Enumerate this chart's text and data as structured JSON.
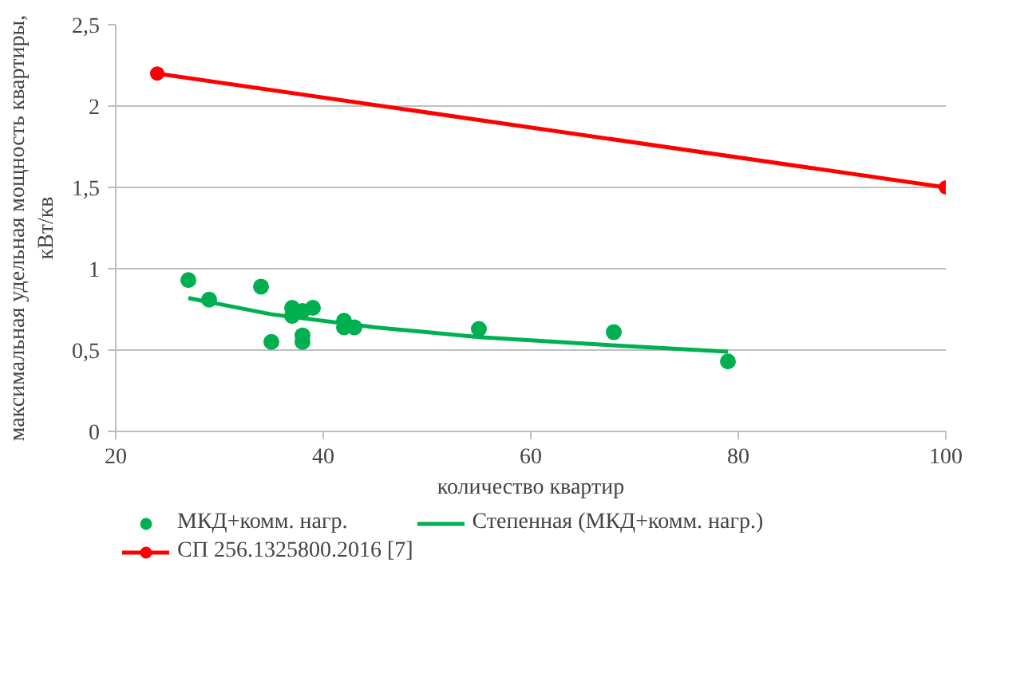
{
  "chart_data": {
    "type": "scatter",
    "xlabel": "количество квартир",
    "ylabel": "максимальная удельная мощность квартиры,\nкВт/кв",
    "xlim": [
      20,
      100
    ],
    "xticks": [
      20,
      40,
      60,
      80,
      100
    ],
    "ylim": [
      0,
      2.5
    ],
    "yticks": [
      0,
      {
        "value": 0.5,
        "label": "0,5"
      },
      1,
      {
        "value": 1.5,
        "label": "1,5"
      },
      2,
      {
        "value": 2.5,
        "label": "2,5"
      }
    ],
    "grid": "y",
    "legend": "bottom",
    "series": [
      {
        "name": "МКД+комм. нагр.",
        "marker": "circle",
        "color": "#00b050",
        "x": [
          27,
          29,
          34,
          35,
          37,
          37,
          38,
          38,
          38,
          39,
          42,
          42,
          43,
          55,
          68,
          79
        ],
        "values": [
          0.93,
          0.81,
          0.89,
          0.55,
          0.76,
          0.71,
          0.74,
          0.59,
          0.55,
          0.76,
          0.68,
          0.64,
          0.64,
          0.63,
          0.61,
          0.43
        ]
      },
      {
        "name": "СП 256.1325800.2016 [7]",
        "type": "line",
        "marker": "circle",
        "color": "#ff0000",
        "x": [
          24,
          100
        ],
        "values": [
          2.2,
          1.5
        ]
      },
      {
        "name": "Степенная (МКД+комм. нагр.)",
        "type": "line",
        "marker": "none",
        "color": "#00b050",
        "x": [
          27,
          35,
          45,
          55,
          65,
          79
        ],
        "values": [
          0.82,
          0.72,
          0.64,
          0.58,
          0.54,
          0.49
        ]
      }
    ]
  }
}
